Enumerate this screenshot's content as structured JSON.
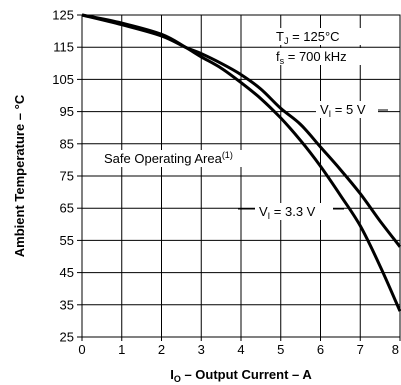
{
  "chart_data": {
    "type": "line",
    "xlabel": {
      "main": "I",
      "sub": "O",
      "rest": " – Output Current – A"
    },
    "ylabel": "Ambient Temperature – °C",
    "xlim": [
      0,
      8
    ],
    "ylim": [
      25,
      125
    ],
    "x_ticks": [
      0,
      1,
      2,
      3,
      4,
      5,
      6,
      7,
      8
    ],
    "x_tick_labels": [
      "0",
      "1",
      "2",
      "3",
      "4",
      "5",
      "6",
      "7",
      "8"
    ],
    "y_ticks": [
      25,
      35,
      45,
      55,
      65,
      75,
      85,
      95,
      105,
      115,
      125
    ],
    "y_tick_labels": [
      "25",
      "35",
      "45",
      "55",
      "65",
      "75",
      "85",
      "95",
      "105",
      "115",
      "125"
    ],
    "grid": true,
    "series": [
      {
        "name": "V_I = 5 V",
        "points": [
          [
            0,
            125
          ],
          [
            1,
            122
          ],
          [
            2,
            118.5
          ],
          [
            2.6,
            115
          ],
          [
            3,
            113
          ],
          [
            3.5,
            110
          ],
          [
            4,
            106.5
          ],
          [
            4.5,
            102
          ],
          [
            5,
            96
          ],
          [
            5.5,
            91
          ],
          [
            6,
            84
          ],
          [
            6.5,
            77
          ],
          [
            7,
            69.5
          ],
          [
            7.5,
            61
          ],
          [
            8,
            53
          ]
        ]
      },
      {
        "name": "V_I = 3.3 V",
        "points": [
          [
            0,
            125
          ],
          [
            1,
            122.5
          ],
          [
            2,
            119
          ],
          [
            2.6,
            115
          ],
          [
            3,
            112
          ],
          [
            3.5,
            108.5
          ],
          [
            4,
            104
          ],
          [
            4.5,
            99
          ],
          [
            5,
            93
          ],
          [
            5.5,
            86
          ],
          [
            6,
            78
          ],
          [
            6.5,
            69
          ],
          [
            7,
            59.5
          ],
          [
            7.5,
            47
          ],
          [
            8,
            33
          ]
        ]
      }
    ],
    "annotations": {
      "tj": {
        "main": "T",
        "sub": "J",
        "rest": " = 125°C"
      },
      "fs": {
        "main": "f",
        "sub": "s",
        "rest": " = 700 kHz"
      },
      "v5": {
        "main": "V",
        "sub": "I",
        "rest": " = 5 V"
      },
      "v33": {
        "main": "V",
        "sub": "I",
        "rest": " = 3.3 V"
      },
      "safe": {
        "main": "Safe Operating Area",
        "sup": "(1)"
      }
    }
  }
}
